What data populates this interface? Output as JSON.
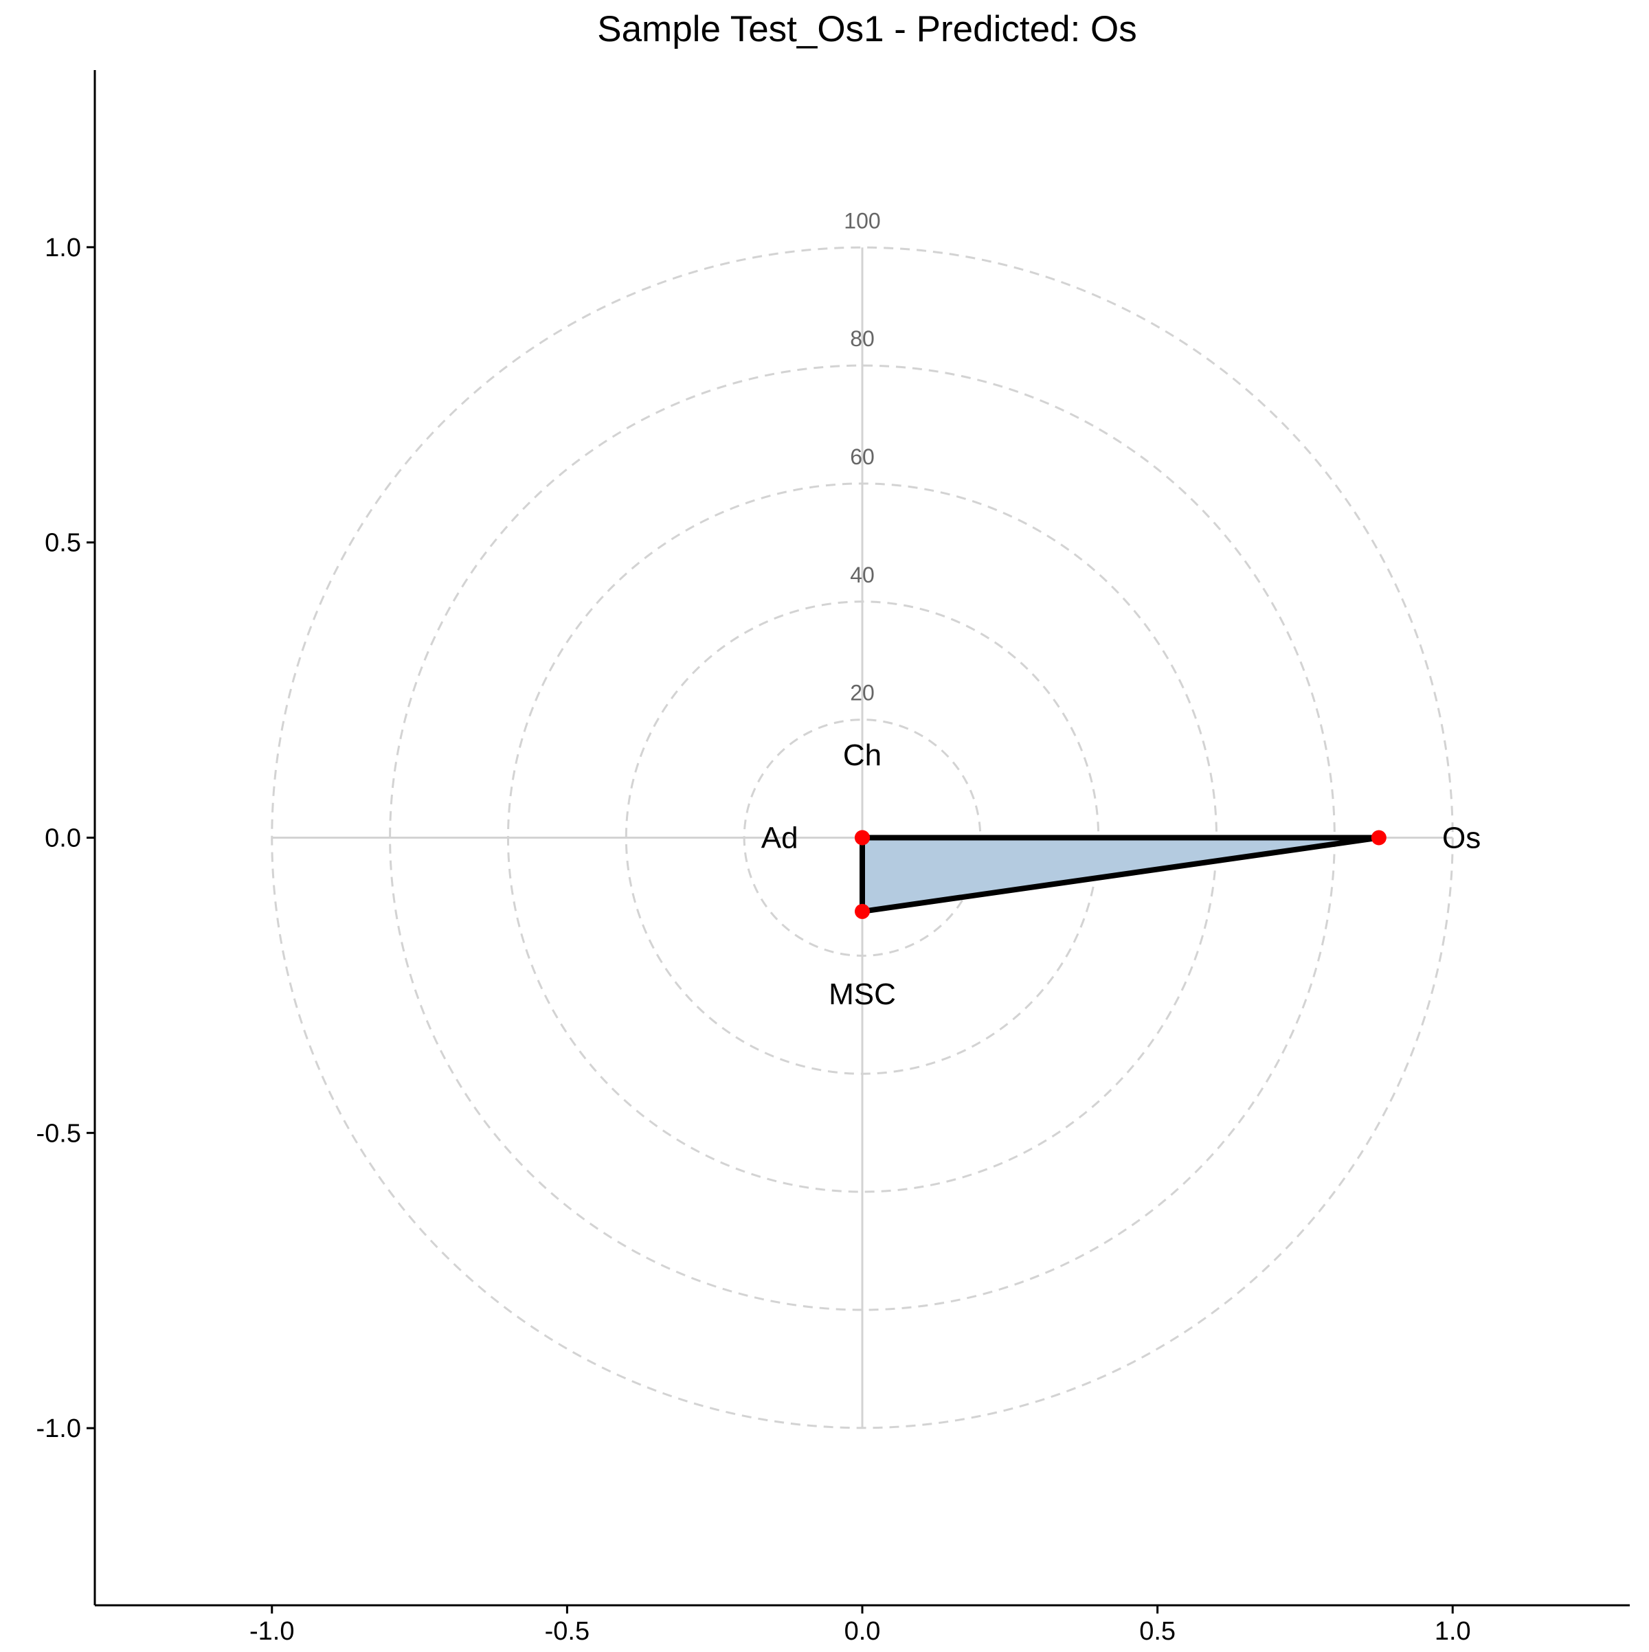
{
  "chart_data": {
    "type": "radar",
    "title": "Sample Test_Os1 - Predicted: Os",
    "xlabel": "",
    "ylabel": "",
    "xlim": [
      -1.3,
      1.3
    ],
    "ylim": [
      -1.3,
      1.3
    ],
    "x_ticks": [
      "-1.0",
      "-0.5",
      "0.0",
      "0.5",
      "1.0"
    ],
    "y_ticks": [
      "1.0",
      "0.5",
      "0.0",
      "-0.5",
      "-1.0"
    ],
    "rings": [
      "20",
      "40",
      "60",
      "80",
      "100"
    ],
    "axes": [
      {
        "name": "Os",
        "angle_deg": 0,
        "value": 87.5
      },
      {
        "name": "Ch",
        "angle_deg": 90,
        "value": 0
      },
      {
        "name": "Ad",
        "angle_deg": 180,
        "value": 0
      },
      {
        "name": "MSC",
        "angle_deg": 270,
        "value": 12.5
      }
    ],
    "grid": true,
    "legend": "none",
    "colors": {
      "fill": "#b4cbe0",
      "outline": "#000000",
      "points": "#ff0000",
      "grid": "#d3d3d3",
      "ring_label": "#666666"
    }
  }
}
